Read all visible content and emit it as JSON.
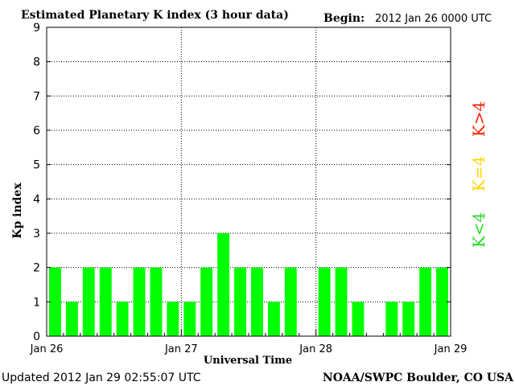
{
  "chart_data": {
    "type": "bar",
    "title": "Estimated Planetary K index (3 hour data)",
    "begin_label": "Begin:",
    "begin_value": "2012 Jan 26 0000 UTC",
    "xlabel": "Universal Time",
    "ylabel": "Kp index",
    "ylim": [
      0,
      9
    ],
    "yticks": [
      "0",
      "1",
      "2",
      "3",
      "4",
      "5",
      "6",
      "7",
      "8",
      "9"
    ],
    "xticks": [
      "Jan 26",
      "Jan 27",
      "Jan 28",
      "Jan 29"
    ],
    "x_range_days": 3,
    "bins_per_day": 8,
    "values": [
      2,
      1,
      2,
      2,
      1,
      2,
      2,
      1,
      1,
      2,
      3,
      2,
      2,
      1,
      2,
      null,
      2,
      2,
      1,
      null,
      1,
      1,
      2,
      2
    ],
    "bar_color": "#00ff00",
    "grid": "dotted",
    "legend": [
      {
        "label": "K>4",
        "color": "#ff2000"
      },
      {
        "label": "K=4",
        "color": "#ffd700"
      },
      {
        "label": "K<4",
        "color": "#22dd22"
      }
    ]
  },
  "footer": {
    "updated": "Updated 2012 Jan 29 02:55:07 UTC",
    "source": "NOAA/SWPC Boulder, CO USA"
  }
}
